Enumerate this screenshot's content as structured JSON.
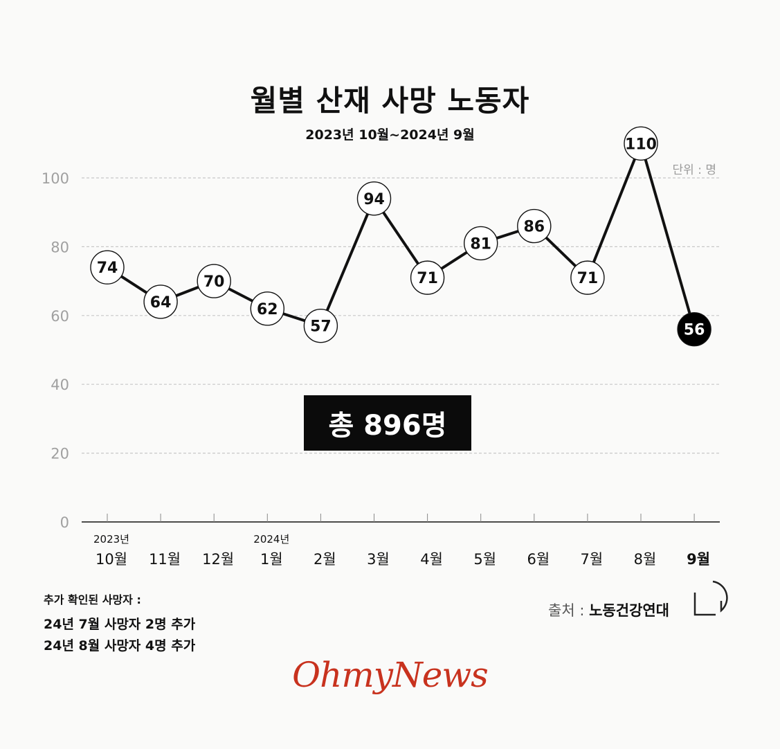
{
  "chart_data": {
    "type": "line",
    "title": "월별 산재 사망 노동자",
    "subtitle": "2023년 10월~2024년 9월",
    "unit_label": "단위 : 명",
    "categories": [
      "10월",
      "11월",
      "12월",
      "1월",
      "2월",
      "3월",
      "4월",
      "5월",
      "6월",
      "7월",
      "8월",
      "9월"
    ],
    "category_year_labels": [
      "2023년",
      "",
      "",
      "2024년",
      "",
      "",
      "",
      "",
      "",
      "",
      "",
      ""
    ],
    "series": [
      {
        "values": [
          74,
          64,
          70,
          62,
          57,
          94,
          71,
          81,
          86,
          71,
          110,
          56
        ]
      }
    ],
    "y_ticks": [
      "0",
      "20",
      "40",
      "60",
      "80",
      "100"
    ],
    "ylim": [
      0,
      100
    ],
    "highlight_index": 11,
    "grid": true
  },
  "total_label": "총 896명",
  "notes": {
    "heading": "추가 확인된 사망자 :",
    "lines": [
      "24년 7월 사망자 2명 추가",
      "24년 8월 사망자 4명 추가"
    ]
  },
  "source": {
    "prefix": "출처 : ",
    "org": "노동건강연대"
  },
  "brand": "OhmyNews",
  "colors": {
    "line": "#111111",
    "highlight": "#000000",
    "grid": "#c8c8c8",
    "brand": "#c8321e",
    "axis_text": "#a0a0a0"
  }
}
